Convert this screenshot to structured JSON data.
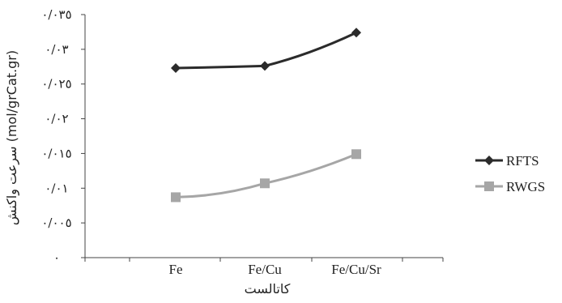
{
  "chart_data": {
    "type": "line",
    "categories": [
      "Fe",
      "Fe/Cu",
      "Fe/Cu/Sr"
    ],
    "series": [
      {
        "name": "RFTS",
        "values": [
          0.0273,
          0.0276,
          0.0324
        ],
        "color": "#2b2b2b",
        "marker": "diamond"
      },
      {
        "name": "RWGS",
        "values": [
          0.0087,
          0.0107,
          0.0149
        ],
        "color": "#a6a6a6",
        "marker": "square"
      }
    ],
    "ylim": [
      0,
      0.035
    ],
    "yticks": [
      0,
      0.005,
      0.01,
      0.015,
      0.02,
      0.025,
      0.03,
      0.035
    ],
    "ytick_labels": [
      "٠",
      "٠/٠٠٥",
      "٠/٠١",
      "٠/٠١٥",
      "٠/٠٢",
      "٠/٠٢٥",
      "٠/٠٣",
      "٠/٠٣٥"
    ],
    "xlabel": "کاتالست",
    "ylabel": "سرعت واکنش (mol/grCat.gr)",
    "grid": false,
    "legend_position": "right"
  }
}
